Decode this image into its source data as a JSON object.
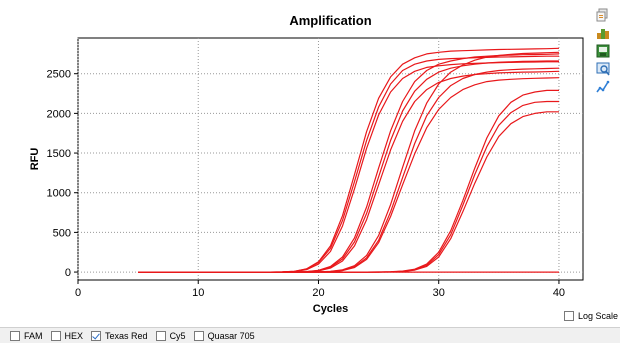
{
  "chart_data": {
    "type": "line",
    "title": "Amplification",
    "xlabel": "Cycles",
    "ylabel": "RFU",
    "xlim": [
      0,
      42
    ],
    "ylim": [
      -100,
      2950
    ],
    "x_ticks": [
      0,
      10,
      20,
      30,
      40
    ],
    "y_ticks": [
      0,
      500,
      1000,
      1500,
      2000,
      2500
    ],
    "grid": true,
    "line_color": "#e8181b",
    "x": [
      5,
      6,
      7,
      8,
      9,
      10,
      11,
      12,
      13,
      14,
      15,
      16,
      17,
      18,
      19,
      20,
      21,
      22,
      23,
      24,
      25,
      26,
      27,
      28,
      29,
      30,
      31,
      32,
      33,
      34,
      35,
      36,
      37,
      38,
      39,
      40
    ],
    "series": [
      {
        "values": [
          0,
          0,
          0,
          0,
          0,
          0,
          0,
          0,
          0,
          0,
          0,
          0,
          2,
          10,
          40,
          130,
          330,
          710,
          1230,
          1770,
          2190,
          2460,
          2620,
          2700,
          2750,
          2770,
          2785,
          2790,
          2795,
          2800,
          2805,
          2808,
          2810,
          2812,
          2815,
          2820
        ]
      },
      {
        "values": [
          0,
          0,
          0,
          0,
          0,
          0,
          0,
          0,
          0,
          0,
          0,
          0,
          2,
          9,
          37,
          120,
          300,
          650,
          1140,
          1660,
          2080,
          2370,
          2540,
          2620,
          2660,
          2680,
          2690,
          2695,
          2700,
          2705,
          2710,
          2712,
          2715,
          2718,
          2720,
          2720
        ]
      },
      {
        "values": [
          0,
          0,
          0,
          0,
          0,
          0,
          0,
          0,
          0,
          0,
          0,
          0,
          1,
          7,
          30,
          100,
          260,
          580,
          1050,
          1560,
          1980,
          2270,
          2440,
          2530,
          2580,
          2600,
          2615,
          2625,
          2630,
          2635,
          2640,
          2642,
          2645,
          2648,
          2650,
          2650
        ]
      },
      {
        "values": [
          0,
          0,
          0,
          0,
          0,
          0,
          0,
          0,
          0,
          0,
          0,
          0,
          0,
          2,
          6,
          22,
          70,
          190,
          430,
          820,
          1310,
          1780,
          2150,
          2400,
          2540,
          2620,
          2660,
          2690,
          2710,
          2720,
          2730,
          2735,
          2740,
          2742,
          2745,
          2750
        ]
      },
      {
        "values": [
          0,
          0,
          0,
          0,
          0,
          0,
          0,
          0,
          0,
          0,
          0,
          0,
          0,
          1,
          5,
          18,
          60,
          165,
          380,
          740,
          1200,
          1660,
          2030,
          2280,
          2430,
          2520,
          2570,
          2600,
          2620,
          2635,
          2645,
          2650,
          2655,
          2658,
          2660,
          2660
        ]
      },
      {
        "values": [
          0,
          0,
          0,
          0,
          0,
          0,
          0,
          0,
          0,
          0,
          0,
          0,
          0,
          1,
          4,
          15,
          50,
          140,
          330,
          660,
          1100,
          1540,
          1900,
          2150,
          2300,
          2390,
          2440,
          2470,
          2490,
          2500,
          2510,
          2515,
          2520,
          2522,
          2525,
          2530
        ]
      },
      {
        "values": [
          0,
          0,
          0,
          0,
          0,
          0,
          0,
          0,
          0,
          0,
          0,
          0,
          0,
          0,
          1,
          3,
          9,
          28,
          80,
          210,
          460,
          850,
          1320,
          1780,
          2130,
          2370,
          2520,
          2610,
          2670,
          2710,
          2730,
          2745,
          2755,
          2760,
          2765,
          2770
        ]
      },
      {
        "values": [
          0,
          0,
          0,
          0,
          0,
          0,
          0,
          0,
          0,
          0,
          0,
          0,
          0,
          0,
          1,
          2,
          7,
          22,
          66,
          180,
          400,
          760,
          1190,
          1620,
          1970,
          2200,
          2350,
          2440,
          2490,
          2520,
          2540,
          2550,
          2558,
          2562,
          2566,
          2570
        ]
      },
      {
        "values": [
          0,
          0,
          0,
          0,
          0,
          0,
          0,
          0,
          0,
          0,
          0,
          0,
          0,
          0,
          0,
          2,
          6,
          19,
          58,
          160,
          370,
          700,
          1100,
          1490,
          1820,
          2050,
          2200,
          2300,
          2360,
          2400,
          2420,
          2430,
          2437,
          2442,
          2446,
          2450
        ]
      },
      {
        "values": [
          0,
          0,
          0,
          0,
          0,
          0,
          0,
          0,
          0,
          0,
          0,
          0,
          0,
          0,
          0,
          0,
          0,
          0,
          0,
          0,
          1,
          4,
          12,
          36,
          100,
          250,
          520,
          900,
          1310,
          1690,
          1970,
          2140,
          2230,
          2270,
          2290,
          2290
        ]
      },
      {
        "values": [
          0,
          0,
          0,
          0,
          0,
          0,
          0,
          0,
          0,
          0,
          0,
          0,
          0,
          0,
          0,
          0,
          0,
          0,
          0,
          0,
          1,
          3,
          10,
          30,
          85,
          220,
          470,
          840,
          1230,
          1580,
          1850,
          2010,
          2100,
          2140,
          2150,
          2150
        ]
      },
      {
        "values": [
          0,
          0,
          0,
          0,
          0,
          0,
          0,
          0,
          0,
          0,
          0,
          0,
          0,
          0,
          0,
          0,
          0,
          0,
          0,
          0,
          0,
          2,
          8,
          25,
          72,
          190,
          420,
          760,
          1120,
          1450,
          1710,
          1870,
          1960,
          2000,
          2020,
          2020
        ]
      },
      {
        "values": [
          0,
          0,
          0,
          0,
          0,
          0,
          0,
          0,
          0,
          0,
          0,
          0,
          0,
          0,
          0,
          0,
          0,
          0,
          0,
          0,
          0,
          0,
          0,
          0,
          0,
          0,
          0,
          0,
          0,
          0,
          0,
          0,
          0,
          0,
          0,
          0
        ]
      }
    ]
  },
  "toolbar": {
    "icons": [
      "copy-icon",
      "export-icon",
      "save-image-icon",
      "print-preview-icon",
      "chart-options-icon"
    ]
  },
  "log_scale": {
    "label": "Log Scale",
    "checked": false
  },
  "dye_selector": {
    "items": [
      {
        "label": "FAM",
        "checked": false
      },
      {
        "label": "HEX",
        "checked": false
      },
      {
        "label": "Texas Red",
        "checked": true
      },
      {
        "label": "Cy5",
        "checked": false
      },
      {
        "label": "Quasar 705",
        "checked": false
      }
    ]
  }
}
